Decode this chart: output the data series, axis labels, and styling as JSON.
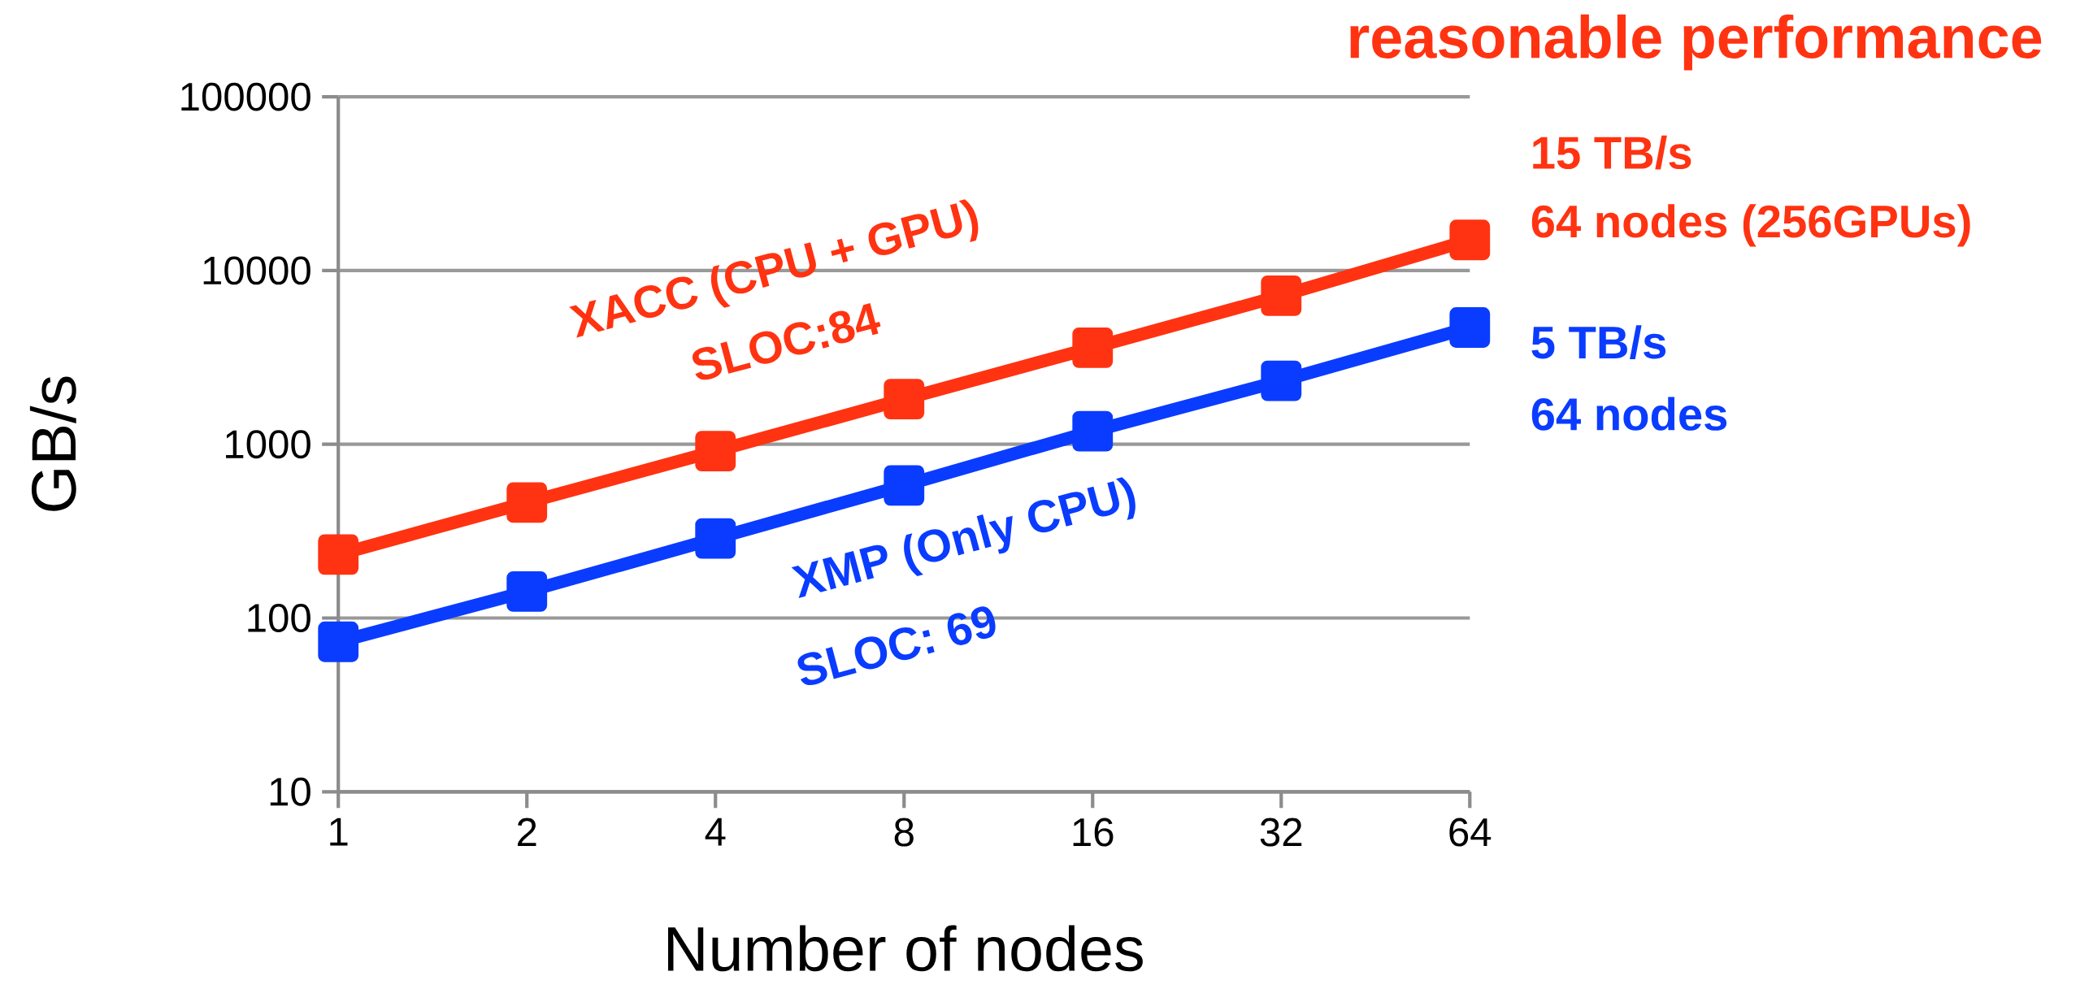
{
  "chart_data": {
    "type": "line",
    "title": "reasonable performance",
    "xlabel": "Number of nodes",
    "ylabel": "GB/s",
    "categories": [
      "1",
      "2",
      "4",
      "8",
      "16",
      "32",
      "64"
    ],
    "series": [
      {
        "name": "XACC (CPU + GPU)",
        "color": "#ff3311",
        "values": [
          232,
          462,
          913,
          1820,
          3600,
          7160,
          15000
        ]
      },
      {
        "name": "XMP (Only CPU)",
        "color": "#0a3cff",
        "values": [
          73,
          142,
          287,
          580,
          1190,
          2320,
          4700
        ]
      }
    ],
    "annotations": [
      "SLOC:84",
      "SLOC: 69",
      "15 TB/s",
      "64 nodes (256GPUs)",
      "5 TB/s",
      "64 nodes"
    ],
    "log": "y",
    "ylim": [
      10,
      100000
    ],
    "yticks": [
      10,
      100,
      1000,
      10000,
      100000
    ],
    "grid": "y",
    "marker": "square",
    "line_style": "solid"
  }
}
